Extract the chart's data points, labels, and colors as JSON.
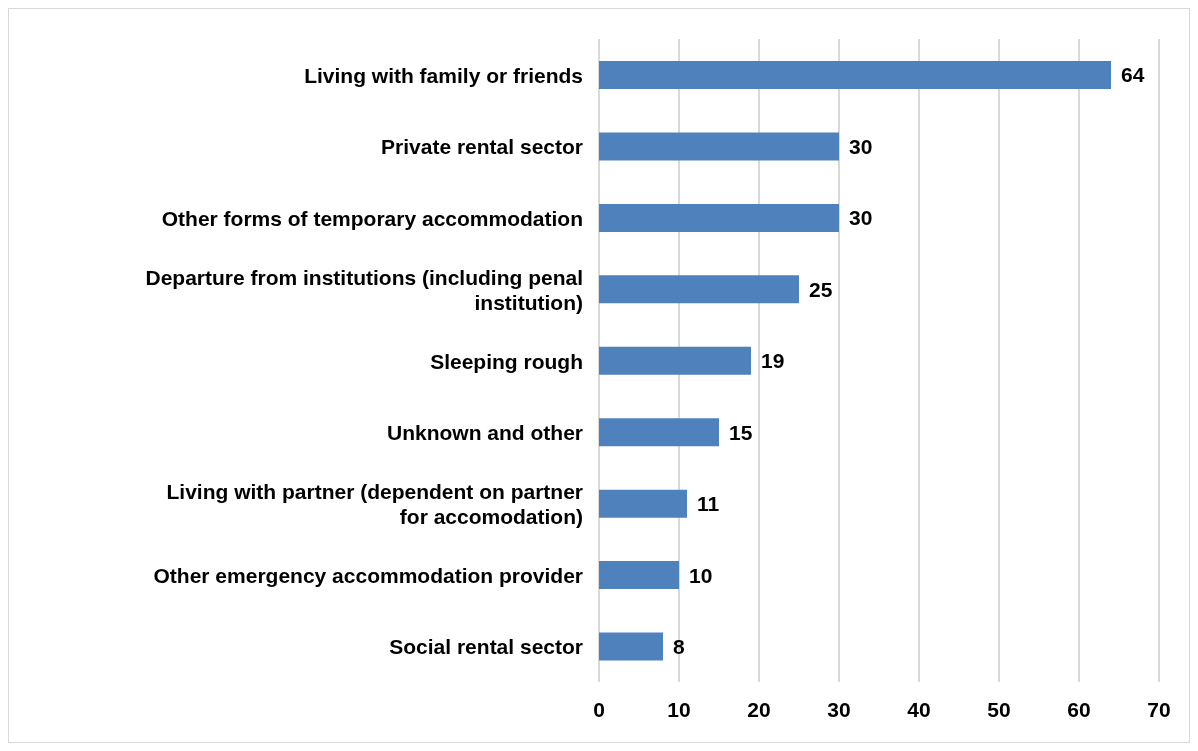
{
  "chart_data": {
    "type": "bar",
    "orientation": "horizontal",
    "categories": [
      "Living with family or friends",
      "Private rental sector",
      "Other forms of temporary accommodation",
      "Departure from institutions (including penal institution)",
      "Sleeping rough",
      "Unknown and other",
      "Living with partner (dependent on partner for accomodation)",
      "Other emergency accommodation provider",
      "Social rental sector"
    ],
    "values": [
      64,
      30,
      30,
      25,
      19,
      15,
      11,
      10,
      8
    ],
    "color": "#4f81bd",
    "xlim": [
      0,
      70
    ],
    "xticks": [
      0,
      10,
      20,
      30,
      40,
      50,
      60,
      70
    ],
    "grid": "x",
    "data_labels": true,
    "legend": false
  }
}
